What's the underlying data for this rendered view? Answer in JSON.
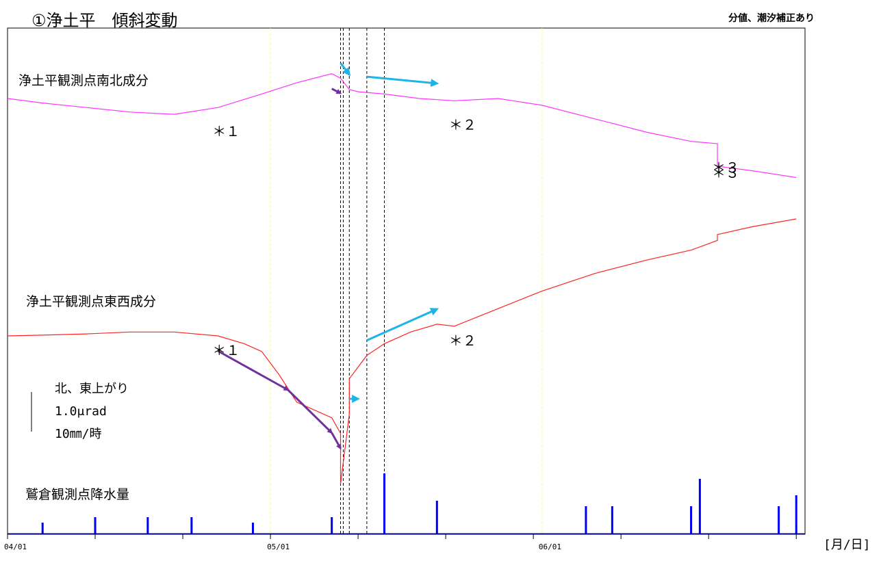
{
  "title": "①浄土平　傾斜変動",
  "note": "分値、潮汐補正あり",
  "unit_label": "[月/日]",
  "colors": {
    "ns": "#ff33ff",
    "ew": "#ff2222",
    "rain": "#0000ee",
    "arrow_purple": "#7030a0",
    "arrow_cyan": "#1fb3e6",
    "month_line": "#ffff66"
  },
  "chart_data": {
    "type": "line",
    "x_axis": {
      "tick_labels": [
        "04/01",
        "05/01",
        "06/01"
      ],
      "range": [
        "04/01",
        "06/30"
      ],
      "minor_ticks_days": 10
    },
    "vertical_lines": {
      "month_dates": [
        "05/01",
        "06/01"
      ],
      "event_dates": [
        "05/09",
        "05/09",
        "05/10",
        "05/12",
        "05/14"
      ]
    },
    "scale_bar": {
      "direction": "北、東上がり",
      "tilt": "1.0μrad",
      "rain": "10㎜/時"
    },
    "series": [
      {
        "name": "浄土平観測点南北成分",
        "key": "ns",
        "x": [
          "04/01",
          "04/05",
          "04/10",
          "04/15",
          "04/20",
          "04/25",
          "04/30",
          "05/04",
          "05/08",
          "05/09",
          "05/10",
          "05/11",
          "05/14",
          "05/18",
          "05/22",
          "05/27",
          "06/01",
          "06/07",
          "06/13",
          "06/18",
          "06/21",
          "06/21",
          "06/25",
          "06/30"
        ],
        "y": [
          0.0,
          -0.1,
          -0.2,
          -0.3,
          -0.35,
          -0.2,
          0.1,
          0.35,
          0.55,
          0.45,
          0.2,
          0.15,
          0.1,
          0.0,
          -0.05,
          0.0,
          -0.15,
          -0.45,
          -0.75,
          -0.95,
          -1.0,
          -1.5,
          -1.6,
          -1.75
        ]
      },
      {
        "name": "浄土平観測点東西成分",
        "key": "ew",
        "x": [
          "04/01",
          "04/05",
          "04/10",
          "04/15",
          "04/20",
          "04/25",
          "04/28",
          "04/30",
          "05/02",
          "05/04",
          "05/06",
          "05/08",
          "05/09",
          "05/09",
          "05/10",
          "05/10",
          "05/12",
          "05/14",
          "05/17",
          "05/20",
          "05/22",
          "05/27",
          "06/01",
          "06/07",
          "06/13",
          "06/18",
          "06/21",
          "06/21",
          "06/25",
          "06/30"
        ],
        "y": [
          0.0,
          0.02,
          0.05,
          0.1,
          0.1,
          0.0,
          -0.2,
          -0.4,
          -1.0,
          -1.7,
          -1.9,
          -2.1,
          -2.5,
          -3.8,
          -2.0,
          -1.1,
          -0.5,
          -0.2,
          0.1,
          0.3,
          0.25,
          0.7,
          1.15,
          1.6,
          1.95,
          2.2,
          2.45,
          2.6,
          2.8,
          3.0
        ]
      },
      {
        "name": "鷲倉観測点降水量",
        "key": "rain",
        "kind": "bar",
        "note": "hourly precipitation; largest peaks around 05/14 and 06/19",
        "x": [
          "04/05",
          "04/11",
          "04/17",
          "04/22",
          "04/29",
          "05/08",
          "05/14",
          "05/20",
          "06/06",
          "06/09",
          "06/18",
          "06/19",
          "06/28",
          "06/30"
        ],
        "y": [
          2,
          3,
          3,
          3,
          2,
          3,
          11,
          6,
          5,
          5,
          5,
          10,
          5,
          7
        ]
      }
    ],
    "annotations": [
      {
        "text": "＊１",
        "near": "ns",
        "date": "04/25"
      },
      {
        "text": "＊２",
        "near": "ns",
        "date": "05/22"
      },
      {
        "text": "＊３",
        "near": "ns",
        "date": "06/21"
      },
      {
        "text": "＊１",
        "near": "ew",
        "date": "04/25"
      },
      {
        "text": "＊２",
        "near": "ew",
        "date": "05/22"
      },
      {
        "text": "＊３",
        "near": "ew",
        "date": "06/21"
      }
    ],
    "arrows": [
      {
        "color": "purple",
        "series": "ns",
        "direction": "up",
        "from": "05/08",
        "to": "05/09"
      },
      {
        "color": "cyan",
        "series": "ns",
        "direction": "down",
        "from": "05/09",
        "to": "05/10"
      },
      {
        "color": "cyan",
        "series": "ns",
        "direction": "down-right",
        "from": "05/12",
        "to": "05/20"
      },
      {
        "color": "purple",
        "series": "ew",
        "direction": "down",
        "from": "04/25",
        "to": "05/03"
      },
      {
        "color": "purple",
        "series": "ew",
        "direction": "down",
        "from": "05/03",
        "to": "05/08"
      },
      {
        "color": "purple",
        "series": "ew",
        "direction": "down",
        "from": "05/08",
        "to": "05/09"
      },
      {
        "color": "cyan",
        "series": "ew",
        "direction": "up",
        "from": "05/10",
        "to": "05/11"
      },
      {
        "color": "cyan",
        "series": "ew",
        "direction": "up-right",
        "from": "05/12",
        "to": "05/20"
      }
    ]
  }
}
